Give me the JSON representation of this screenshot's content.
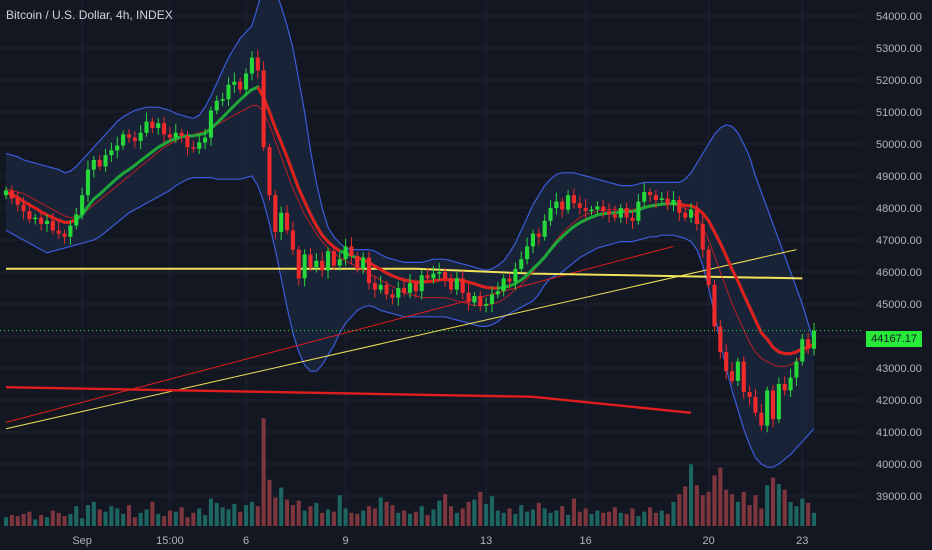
{
  "title": "Bitcoin / U.S. Dollar, 4h, INDEX",
  "colors": {
    "background": "#131722",
    "grid": "#1f2433",
    "axis_text": "#b2b5be",
    "up": "#26d83a",
    "down": "#ef2a2a",
    "volume_up": "#1f6e68",
    "volume_down": "#8a3a40",
    "bb_line": "#3b5bdb",
    "bb_fill": "#1c2840",
    "ma_green": "#1fa83a",
    "ma_red": "#e01e1e",
    "ma_yellow": "#f2e35a",
    "current_price": "#26e93a"
  },
  "chart_data": {
    "type": "candlestick",
    "title": "Bitcoin / U.S. Dollar, 4h, INDEX",
    "ylim": [
      38000,
      54500
    ],
    "y_ticks": [
      "39000.00",
      "40000.00",
      "41000.00",
      "42000.00",
      "43000.00",
      "44000.00",
      "45000.00",
      "46000.00",
      "47000.00",
      "48000.00",
      "49000.00",
      "50000.00",
      "51000.00",
      "52000.00",
      "53000.00",
      "54000.00"
    ],
    "x_ticks": [
      {
        "label": "Sep",
        "index": 13
      },
      {
        "label": "15:00",
        "index": 28
      },
      {
        "label": "6",
        "index": 41
      },
      {
        "label": "9",
        "index": 58
      },
      {
        "label": "13",
        "index": 82
      },
      {
        "label": "16",
        "index": 99
      },
      {
        "label": "20",
        "index": 120
      },
      {
        "label": "23",
        "index": 136
      }
    ],
    "current_price": "44167.17",
    "closes": [
      48550,
      48300,
      48100,
      47900,
      47650,
      47700,
      47500,
      47600,
      47300,
      47200,
      47100,
      47450,
      47800,
      48400,
      49200,
      49500,
      49300,
      49650,
      49800,
      49950,
      50300,
      50200,
      50100,
      50350,
      50700,
      50500,
      50650,
      50300,
      50200,
      50350,
      50250,
      49900,
      49850,
      50050,
      50200,
      51050,
      51350,
      51400,
      51850,
      51950,
      51700,
      52200,
      52700,
      52300,
      49900,
      48400,
      47250,
      47850,
      47300,
      46700,
      45800,
      46550,
      46150,
      46350,
      46050,
      46650,
      46200,
      46400,
      46800,
      46500,
      46100,
      46450,
      45650,
      45450,
      45600,
      45300,
      45200,
      45500,
      45350,
      45650,
      45400,
      45900,
      45800,
      45950,
      46000,
      45800,
      45450,
      45800,
      45350,
      45050,
      45250,
      44950,
      45000,
      45300,
      45400,
      45800,
      45700,
      46100,
      46400,
      46800,
      47200,
      47100,
      47600,
      48000,
      48200,
      47950,
      48400,
      48150,
      48000,
      47900,
      47950,
      48050,
      47900,
      47800,
      47700,
      48000,
      47700,
      47600,
      48200,
      48500,
      48400,
      48250,
      48300,
      48100,
      48250,
      47850,
      47700,
      47950,
      47500,
      46700,
      45600,
      44300,
      43500,
      42900,
      42600,
      43200,
      42250,
      42100,
      41600,
      41200,
      42300,
      41400,
      42500,
      42300,
      42700,
      43200,
      43900,
      43600,
      44167
    ],
    "ma_green": [
      48500,
      48420,
      48330,
      48200,
      48100,
      48000,
      47880,
      47780,
      47700,
      47620,
      47550,
      47560,
      47640,
      47780,
      48050,
      48280,
      48430,
      48600,
      48770,
      48930,
      49080,
      49200,
      49330,
      49480,
      49620,
      49760,
      49900,
      50000,
      50100,
      50170,
      50230,
      50250,
      50260,
      50290,
      50330,
      50480,
      50650,
      50830,
      51020,
      51200,
      51380,
      51550,
      51700,
      51780,
      51450,
      51000,
      50500,
      50050,
      49600,
      49100,
      48600,
      48200,
      47800,
      47450,
      47150,
      46950,
      46780,
      46660,
      46580,
      46510,
      46440,
      46390,
      46290,
      46180,
      46080,
      45970,
      45880,
      45810,
      45750,
      45720,
      45680,
      45690,
      45700,
      45720,
      45750,
      45770,
      45750,
      45760,
      45730,
      45680,
      45630,
      45570,
      45520,
      45500,
      45490,
      45520,
      45560,
      45640,
      45750,
      45900,
      46100,
      46270,
      46470,
      46700,
      46920,
      47100,
      47270,
      47420,
      47540,
      47630,
      47710,
      47780,
      47820,
      47840,
      47850,
      47880,
      47890,
      47890,
      47940,
      48010,
      48060,
      48090,
      48120,
      48130,
      48140,
      48120,
      48080,
      48070,
      47990,
      47830,
      47600,
      47250,
      46900,
      46500,
      46080,
      45720,
      45300,
      44900,
      44500,
      44100,
      43900,
      43650,
      43500,
      43450,
      43450,
      43500,
      43600,
      43650,
      43750
    ],
    "bb_upper": [
      49700,
      49650,
      49600,
      49500,
      49450,
      49400,
      49350,
      49300,
      49250,
      49200,
      49100,
      49150,
      49300,
      49500,
      49700,
      49900,
      50100,
      50300,
      50500,
      50700,
      50850,
      50950,
      51050,
      51100,
      51150,
      51150,
      51150,
      51100,
      51050,
      50950,
      50900,
      50850,
      50800,
      50900,
      51150,
      51500,
      51900,
      52300,
      52700,
      53000,
      53300,
      53500,
      53700,
      54300,
      55000,
      55200,
      54800,
      54300,
      53700,
      53000,
      52000,
      51000,
      49800,
      48800,
      48000,
      47400,
      47100,
      46900,
      46750,
      46700,
      46700,
      46700,
      46700,
      46650,
      46550,
      46450,
      46400,
      46350,
      46300,
      46300,
      46300,
      46300,
      46350,
      46400,
      46400,
      46400,
      46350,
      46300,
      46250,
      46200,
      46150,
      46100,
      46050,
      46100,
      46200,
      46350,
      46600,
      46900,
      47300,
      47700,
      48100,
      48400,
      48700,
      48900,
      49050,
      49100,
      49100,
      49100,
      49050,
      49000,
      48950,
      48900,
      48850,
      48800,
      48750,
      48700,
      48700,
      48700,
      48750,
      48800,
      48800,
      48800,
      48800,
      48800,
      48800,
      48800,
      48900,
      49100,
      49400,
      49700,
      50000,
      50300,
      50500,
      50600,
      50550,
      50350,
      50000,
      49600,
      49000,
      48500,
      48000,
      47500,
      47000,
      46500,
      46000,
      45500,
      45000,
      44400,
      43800
    ],
    "bb_lower": [
      47300,
      47200,
      47100,
      47000,
      46900,
      46800,
      46700,
      46600,
      46650,
      46700,
      46750,
      46800,
      46850,
      46900,
      46950,
      47000,
      47100,
      47250,
      47400,
      47550,
      47700,
      47850,
      47950,
      48050,
      48150,
      48250,
      48350,
      48450,
      48550,
      48700,
      48800,
      48900,
      48950,
      48950,
      48950,
      48950,
      48900,
      48900,
      48900,
      48900,
      48900,
      48950,
      49000,
      48700,
      48200,
      47500,
      46700,
      45800,
      44900,
      44100,
      43500,
      43100,
      42900,
      42900,
      43100,
      43400,
      43700,
      44100,
      44400,
      44600,
      44800,
      44900,
      44950,
      44900,
      44800,
      44750,
      44700,
      44650,
      44600,
      44600,
      44600,
      44600,
      44600,
      44600,
      44600,
      44600,
      44550,
      44500,
      44450,
      44400,
      44350,
      44300,
      44300,
      44350,
      44450,
      44600,
      44700,
      44800,
      44900,
      45000,
      45100,
      45300,
      45600,
      45800,
      45900,
      46000,
      46150,
      46300,
      46450,
      46550,
      46650,
      46750,
      46800,
      46850,
      46900,
      46950,
      46950,
      46950,
      47000,
      47050,
      47100,
      47100,
      47150,
      47150,
      47150,
      47100,
      47050,
      46950,
      46700,
      46200,
      45500,
      44700,
      43800,
      43000,
      42300,
      41700,
      41100,
      40600,
      40200,
      40000,
      39900,
      39900,
      40000,
      40150,
      40300,
      40500,
      40700,
      40900,
      41100
    ],
    "red_curve": [
      48600,
      48550,
      48500,
      48450,
      48350,
      48250,
      48150,
      48050,
      47950,
      47850,
      47750,
      47700,
      47720,
      47800,
      47950,
      48100,
      48250,
      48400,
      48550,
      48700,
      48850,
      49000,
      49150,
      49300,
      49450,
      49600,
      49750,
      49900,
      50000,
      50100,
      50200,
      50250,
      50300,
      50350,
      50400,
      50500,
      50600,
      50700,
      50800,
      50900,
      51000,
      51100,
      51200,
      51200,
      51000,
      50600,
      50100,
      49600,
      49100,
      48600,
      48200,
      47800,
      47500,
      47200,
      46950,
      46750,
      46600,
      46450,
      46350,
      46250,
      46150,
      46050,
      45950,
      45850,
      45750,
      45650,
      45550,
      45450,
      45350,
      45300,
      45250,
      45200,
      45200,
      45200,
      45200,
      45200,
      45150,
      45100,
      45050,
      45000,
      44950,
      44950,
      44950,
      45000,
      45050,
      45150,
      45300,
      45450,
      45600,
      45800,
      46000,
      46250,
      46500,
      46750,
      47000,
      47200,
      47400,
      47550,
      47700,
      47800,
      47850,
      47900,
      47950,
      47950,
      47950,
      47950,
      47950,
      47950,
      48000,
      48050,
      48100,
      48100,
      48100,
      48100,
      48100,
      48050,
      48000,
      47900,
      47700,
      47400,
      47000,
      46500,
      46000,
      45500,
      45000,
      44600,
      44200,
      43800,
      43500,
      43300,
      43200,
      43100,
      43050,
      43050,
      43100,
      43200,
      43400,
      43600,
      43800
    ],
    "ma_slow_red_line": {
      "start": [
        0,
        41300
      ],
      "end": [
        114,
        46800
      ]
    },
    "ma_slow_yellow_line": {
      "start": [
        0,
        41100
      ],
      "end": [
        135,
        46700
      ]
    },
    "yellow_ma_line": {
      "points": [
        [
          0,
          46100
        ],
        [
          70,
          46100
        ],
        [
          90,
          45950
        ],
        [
          136,
          45800
        ]
      ]
    },
    "red_ma_line": {
      "points": [
        [
          0,
          42400
        ],
        [
          60,
          42200
        ],
        [
          90,
          42100
        ],
        [
          117,
          41600
        ]
      ]
    },
    "volumes": [
      0.8,
      1,
      0.9,
      1.1,
      1.3,
      0.6,
      1,
      0.8,
      1.4,
      1.2,
      0.9,
      1.1,
      1.8,
      0.7,
      1.9,
      2.2,
      1.5,
      1.3,
      1.8,
      1.6,
      1.1,
      1.9,
      0.8,
      1.2,
      1.5,
      2.2,
      1.1,
      0.9,
      1.4,
      1.3,
      1.7,
      0.8,
      1.2,
      1.6,
      1,
      2.5,
      2.1,
      1.7,
      1.5,
      2,
      1.3,
      1.9,
      2.2,
      1.8,
      9.8,
      4.2,
      2.6,
      3.5,
      2.4,
      1.9,
      2.3,
      1.4,
      1.8,
      2.1,
      1.2,
      1.5,
      1.3,
      2.8,
      1.6,
      1.2,
      1.1,
      1.4,
      1.8,
      1.6,
      2.6,
      2.2,
      1.9,
      1.2,
      1.4,
      1.1,
      1.3,
      1.8,
      1,
      1.5,
      2.3,
      2.9,
      1.8,
      1.2,
      1.6,
      2.2,
      2.4,
      3.1,
      2,
      2.7,
      1.4,
      1.2,
      1.6,
      1.1,
      1.9,
      1.3,
      1.5,
      2.1,
      1.6,
      1.2,
      1.4,
      1.8,
      1,
      2.5,
      1.3,
      1.6,
      1.1,
      1.4,
      1.2,
      1.3,
      1.7,
      1.2,
      1.1,
      1.6,
      0.9,
      1.3,
      1.7,
      1.2,
      1.4,
      1.1,
      2.2,
      2.9,
      3.6,
      5.6,
      3.7,
      2.8,
      3.1,
      4.6,
      5.3,
      3.3,
      2.9,
      2.2,
      3.1,
      1.9,
      2.8,
      1.6,
      3.7,
      4.4,
      3.8,
      3.3,
      2.2,
      1.8,
      2.5,
      2.1,
      1.2
    ]
  }
}
